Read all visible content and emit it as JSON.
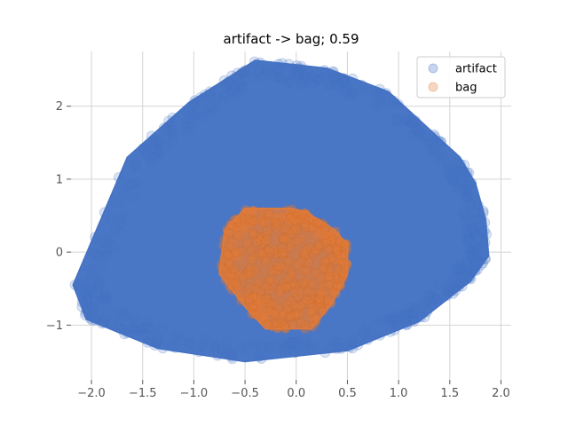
{
  "chart_data": {
    "type": "scatter",
    "title": "artifact -> bag; 0.59",
    "xlabel": "",
    "ylabel": "",
    "xlim": [
      -2.2,
      2.1
    ],
    "ylim": [
      -1.75,
      2.75
    ],
    "x_ticks": [
      -2.0,
      -1.5,
      -1.0,
      -0.5,
      0.0,
      0.5,
      1.0,
      1.5,
      2.0
    ],
    "x_tick_labels": [
      "−2.0",
      "−1.5",
      "−1.0",
      "−0.5",
      "0.0",
      "0.5",
      "1.0",
      "1.5",
      "2.0"
    ],
    "y_ticks": [
      -1,
      0,
      1,
      2
    ],
    "y_tick_labels": [
      "−1",
      "0",
      "1",
      "2"
    ],
    "grid": true,
    "legend_position": "top-right",
    "series": [
      {
        "name": "artifact",
        "color": "#4472c4",
        "marker": "circle",
        "alpha": 0.2,
        "hull": [
          [
            -2.18,
            -0.45
          ],
          [
            -2.05,
            -0.92
          ],
          [
            -1.35,
            -1.32
          ],
          [
            -0.5,
            -1.5
          ],
          [
            0.5,
            -1.35
          ],
          [
            1.2,
            -0.95
          ],
          [
            1.7,
            -0.4
          ],
          [
            1.88,
            -0.05
          ],
          [
            1.85,
            0.45
          ],
          [
            1.75,
            0.95
          ],
          [
            1.6,
            1.3
          ],
          [
            0.9,
            2.2
          ],
          [
            0.3,
            2.52
          ],
          [
            -0.4,
            2.63
          ],
          [
            -1.05,
            2.05
          ],
          [
            -1.65,
            1.3
          ]
        ]
      },
      {
        "name": "bag",
        "color": "#e07b39",
        "marker": "circle",
        "alpha": 0.4,
        "hull": [
          [
            -0.75,
            -0.3
          ],
          [
            -0.5,
            -0.75
          ],
          [
            -0.3,
            -1.05
          ],
          [
            0.15,
            -1.05
          ],
          [
            0.35,
            -0.7
          ],
          [
            0.5,
            -0.3
          ],
          [
            0.5,
            0.1
          ],
          [
            0.38,
            0.3
          ],
          [
            0.1,
            0.55
          ],
          [
            -0.05,
            0.6
          ],
          [
            -0.5,
            0.6
          ],
          [
            -0.7,
            0.3
          ]
        ]
      }
    ]
  }
}
